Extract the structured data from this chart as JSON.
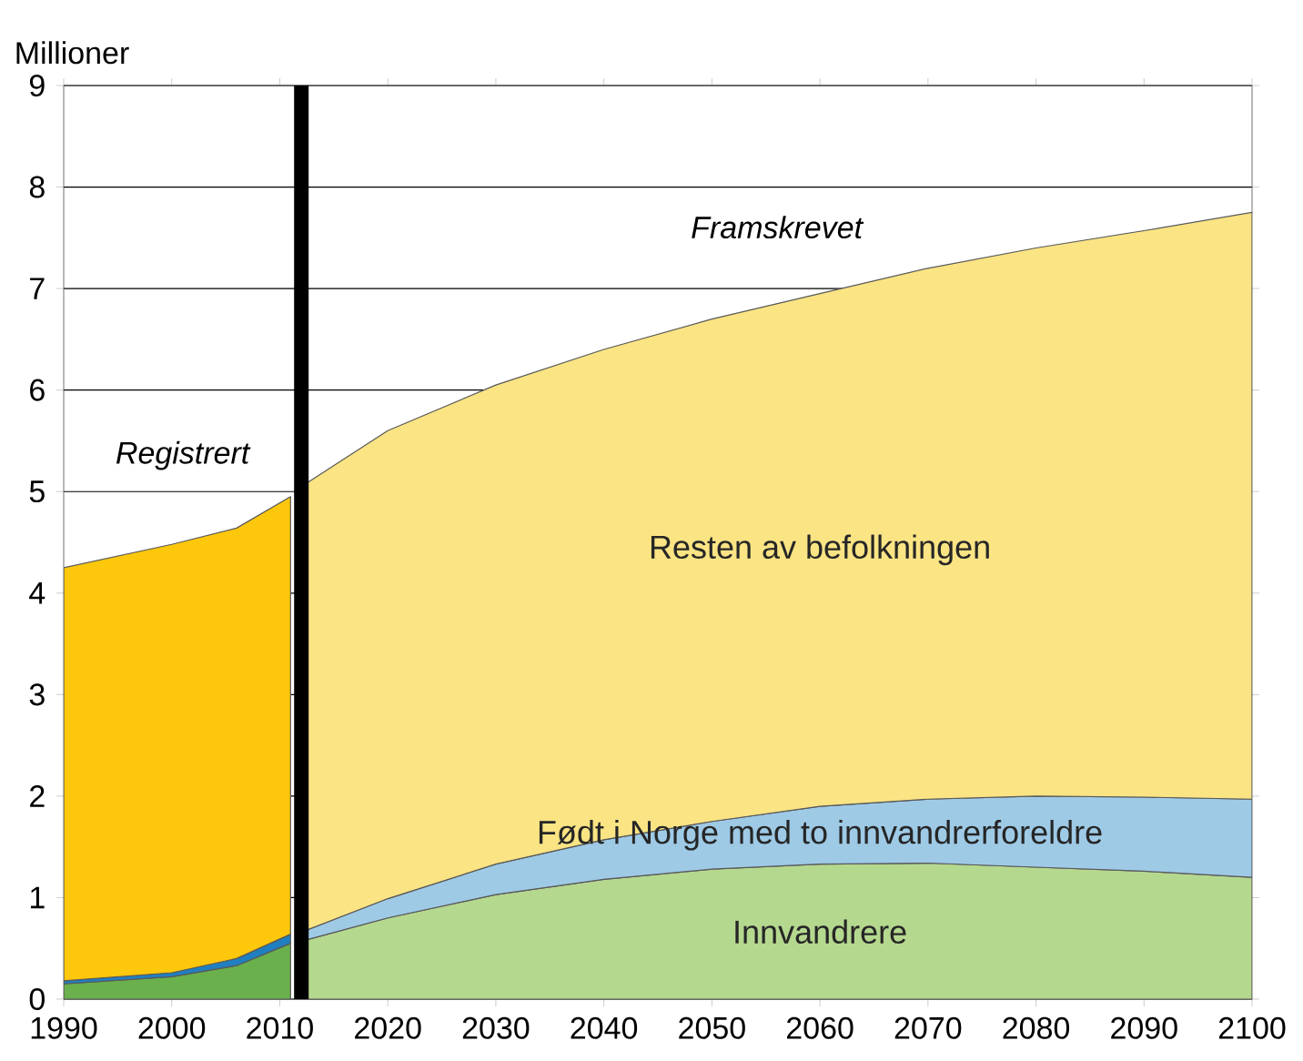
{
  "chart_data": {
    "type": "area",
    "stacked": true,
    "ylabel": "Millioner",
    "xlim": [
      1990,
      2100
    ],
    "xticks": [
      1990,
      2000,
      2010,
      2020,
      2030,
      2040,
      2050,
      2060,
      2070,
      2080,
      2090,
      2100
    ],
    "ylim": [
      0,
      9
    ],
    "yticks": [
      0,
      1,
      2,
      3,
      4,
      5,
      6,
      7,
      8,
      9
    ],
    "grid": "y",
    "annotations": [
      "Registrert",
      "Framskrevet"
    ],
    "ref_lines": [
      {
        "axis": "x",
        "value": 2012,
        "color": "#000000"
      }
    ],
    "x": [
      1990,
      2000,
      2006,
      2011,
      2012,
      2020,
      2030,
      2040,
      2050,
      2060,
      2070,
      2080,
      2090,
      2100
    ],
    "series": [
      {
        "color": "#6ab04c",
        "values": [
          0.15,
          0.22,
          0.33,
          0.55,
          null,
          null,
          null,
          null,
          null,
          null,
          null,
          null,
          null,
          null
        ]
      },
      {
        "color": "#1f7fc0",
        "values": [
          0.03,
          0.04,
          0.07,
          0.09,
          null,
          null,
          null,
          null,
          null,
          null,
          null,
          null,
          null,
          null
        ]
      },
      {
        "color": "#fdc70c",
        "values": [
          4.07,
          4.22,
          4.24,
          4.31,
          null,
          null,
          null,
          null,
          null,
          null,
          null,
          null,
          null,
          null
        ]
      },
      {
        "name": "Innvandrere",
        "color": "#b5d88f",
        "values": [
          null,
          null,
          null,
          null,
          0.57,
          0.8,
          1.03,
          1.18,
          1.28,
          1.33,
          1.34,
          1.3,
          1.26,
          1.2
        ]
      },
      {
        "name": "Født i Norge med to innvandrerforeldre",
        "color": "#9ecae6",
        "values": [
          null,
          null,
          null,
          null,
          0.09,
          0.19,
          0.3,
          0.39,
          0.47,
          0.57,
          0.63,
          0.7,
          0.73,
          0.77
        ]
      },
      {
        "name": "Resten av befolkningen",
        "color": "#fae484",
        "values": [
          null,
          null,
          null,
          null,
          4.39,
          4.61,
          4.72,
          4.83,
          4.95,
          5.05,
          5.23,
          5.4,
          5.58,
          5.78
        ]
      }
    ]
  }
}
